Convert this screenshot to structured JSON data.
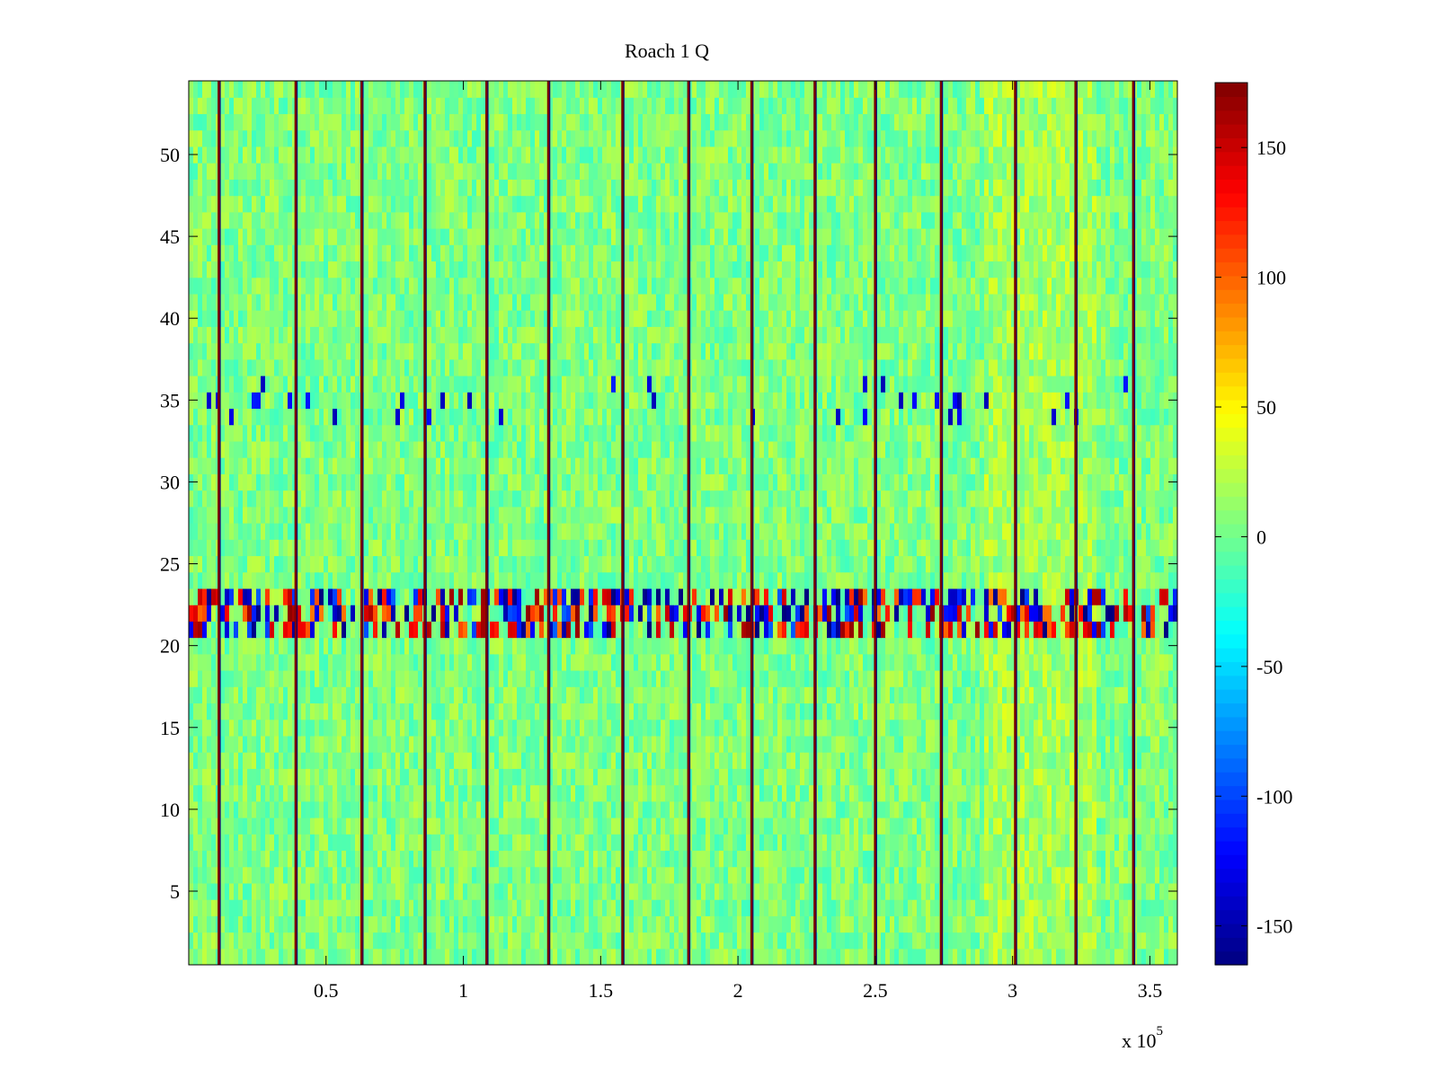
{
  "chart_data": {
    "type": "heatmap",
    "title": "Roach 1 Q",
    "xlabel": "",
    "ylabel": "",
    "x_multiplier_label": "x 10",
    "x_multiplier_exponent": "5",
    "xlim": [
      0,
      360000
    ],
    "ylim": [
      0.5,
      54.5
    ],
    "x_ticks": [
      {
        "value": 50000,
        "label": "0.5"
      },
      {
        "value": 100000,
        "label": "1"
      },
      {
        "value": 150000,
        "label": "1.5"
      },
      {
        "value": 200000,
        "label": "2"
      },
      {
        "value": 250000,
        "label": "2.5"
      },
      {
        "value": 300000,
        "label": "3"
      },
      {
        "value": 350000,
        "label": "3.5"
      }
    ],
    "y_ticks": [
      {
        "value": 5,
        "label": "5"
      },
      {
        "value": 10,
        "label": "10"
      },
      {
        "value": 15,
        "label": "15"
      },
      {
        "value": 20,
        "label": "20"
      },
      {
        "value": 25,
        "label": "25"
      },
      {
        "value": 30,
        "label": "30"
      },
      {
        "value": 35,
        "label": "35"
      },
      {
        "value": 40,
        "label": "40"
      },
      {
        "value": 45,
        "label": "45"
      },
      {
        "value": 50,
        "label": "50"
      }
    ],
    "rows": 54,
    "background_value_mean": 5,
    "background_value_spread": 22,
    "colorbar": {
      "colormap": "jet",
      "min": -165,
      "max": 175,
      "ticks": [
        {
          "value": -150,
          "label": "-150"
        },
        {
          "value": -100,
          "label": "-100"
        },
        {
          "value": -50,
          "label": "-50"
        },
        {
          "value": 0,
          "label": "0"
        },
        {
          "value": 50,
          "label": "50"
        },
        {
          "value": 100,
          "label": "100"
        },
        {
          "value": 150,
          "label": "150"
        }
      ]
    },
    "block_boundary_lines_x": [
      11000,
      39000,
      63000,
      86000,
      108500,
      131000,
      158000,
      182000,
      205000,
      228000,
      250000,
      274000,
      301000,
      323000,
      344000
    ],
    "high_variance_band_rows": [
      21,
      23
    ],
    "warm_region_x": [
      290000,
      330000
    ],
    "sparse_dark_blue_rows": [
      34,
      35,
      36
    ]
  }
}
